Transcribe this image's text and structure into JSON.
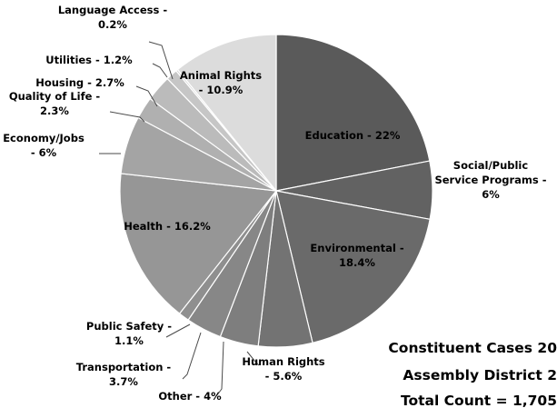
{
  "chart_data": {
    "type": "pie",
    "title_lines": [
      "Constituent Cases 20",
      "Assembly District 2",
      "Total Count = 1,705"
    ],
    "start_angle_deg": 0,
    "direction": "clockwise",
    "slices": [
      {
        "name": "Education",
        "value": 22,
        "color": "#5a5a5a",
        "label_lines": [
          "Education - 22%"
        ]
      },
      {
        "name": "Social/Public Service Programs",
        "value": 6,
        "color": "#626262",
        "label_lines": [
          "Social/Public",
          "Service Programs -",
          "6%"
        ]
      },
      {
        "name": "Environmental",
        "value": 18.4,
        "color": "#6a6a6a",
        "label_lines": [
          "Environmental -",
          "18.4%"
        ]
      },
      {
        "name": "Human Rights",
        "value": 5.6,
        "color": "#737373",
        "label_lines": [
          "Human Rights",
          "- 5.6%"
        ]
      },
      {
        "name": "Other",
        "value": 4,
        "color": "#7e7e7e",
        "label_lines": [
          "Other - 4%"
        ]
      },
      {
        "name": "Transportation",
        "value": 3.7,
        "color": "#878787",
        "label_lines": [
          "Transportation -",
          "3.7%"
        ]
      },
      {
        "name": "Public Safety",
        "value": 1.1,
        "color": "#8f8f8f",
        "label_lines": [
          "Public Safety -",
          "1.1%"
        ]
      },
      {
        "name": "Health",
        "value": 16.2,
        "color": "#969696",
        "label_lines": [
          "Health - 16.2%"
        ]
      },
      {
        "name": "Economy/Jobs",
        "value": 6,
        "color": "#a4a4a4",
        "label_lines": [
          "Economy/Jobs",
          "- 6%"
        ]
      },
      {
        "name": "Quality of Life",
        "value": 2.3,
        "color": "#b0b0b0",
        "label_lines": [
          "Quality of Life -",
          "2.3%"
        ]
      },
      {
        "name": "Housing",
        "value": 2.7,
        "color": "#bbbbbb",
        "label_lines": [
          "Housing - 2.7%"
        ]
      },
      {
        "name": "Utilities",
        "value": 1.2,
        "color": "#c6c6c6",
        "label_lines": [
          "Utilities - 1.2%"
        ]
      },
      {
        "name": "Language Access",
        "value": 0.2,
        "color": "#cfcfcf",
        "label_lines": [
          "Language Access -",
          "0.2%"
        ]
      },
      {
        "name": "Animal Rights",
        "value": 10.9,
        "color": "#dcdcdc",
        "label_lines": [
          "Animal Rights",
          "- 10.9%"
        ]
      }
    ]
  }
}
